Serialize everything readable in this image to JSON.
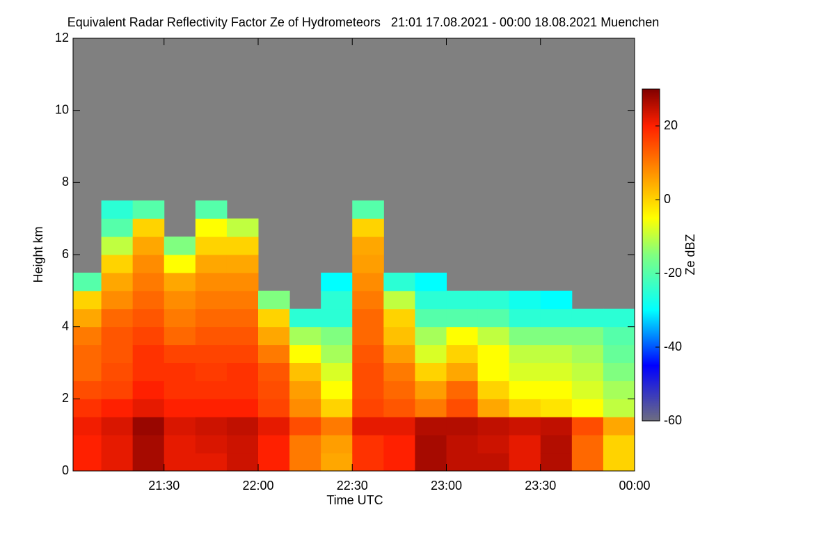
{
  "chart_data": {
    "type": "heatmap",
    "title": "Equivalent Radar Reflectivity Factor Ze of Hydrometeors   21:01 17.08.2021 - 00:00 18.08.2021 Muenchen",
    "x_label": "Time UTC",
    "y_label": "Height km",
    "colorbar_label": "Ze dBZ",
    "x": [
      "21:05",
      "21:15",
      "21:25",
      "21:35",
      "21:45",
      "21:55",
      "22:05",
      "22:15",
      "22:25",
      "22:35",
      "22:45",
      "22:55",
      "23:05",
      "23:15",
      "23:25",
      "23:35",
      "23:45",
      "23:55"
    ],
    "y": [
      0.25,
      0.75,
      1.25,
      1.75,
      2.25,
      2.75,
      3.25,
      3.75,
      4.25,
      4.75,
      5.25,
      5.75,
      6.25,
      6.75,
      7.25,
      7.75
    ],
    "z": [
      [
        20,
        20,
        21,
        18,
        15,
        12,
        12,
        10,
        5,
        0,
        -20,
        null,
        null,
        null,
        null,
        null
      ],
      [
        22,
        22,
        23,
        20,
        16,
        15,
        14,
        14,
        12,
        8,
        5,
        0,
        -10,
        -20,
        -25,
        null
      ],
      [
        27,
        27,
        28,
        22,
        20,
        18,
        18,
        16,
        14,
        12,
        10,
        8,
        5,
        0,
        -20,
        null
      ],
      [
        22,
        22,
        23,
        20,
        18,
        18,
        16,
        12,
        10,
        8,
        5,
        -5,
        -15,
        null,
        null,
        null
      ],
      [
        22,
        23,
        24,
        20,
        18,
        17,
        16,
        14,
        12,
        10,
        8,
        5,
        0,
        -5,
        -20,
        null
      ],
      [
        24,
        24,
        25,
        20,
        18,
        18,
        16,
        14,
        12,
        10,
        8,
        5,
        0,
        -10,
        null,
        null
      ],
      [
        20,
        20,
        22,
        16,
        15,
        14,
        10,
        5,
        0,
        -15,
        null,
        null,
        null,
        null,
        null,
        null
      ],
      [
        10,
        10,
        15,
        8,
        6,
        2,
        -5,
        -12,
        -25,
        null,
        null,
        null,
        null,
        null,
        null,
        null
      ],
      [
        5,
        6,
        10,
        0,
        -5,
        -8,
        -12,
        -15,
        -25,
        -25,
        -30,
        null,
        null,
        null,
        null,
        null
      ],
      [
        18,
        18,
        22,
        16,
        15,
        15,
        14,
        12,
        12,
        10,
        8,
        6,
        5,
        0,
        -20,
        null
      ],
      [
        20,
        20,
        22,
        14,
        12,
        10,
        6,
        2,
        0,
        -10,
        -25,
        null,
        null,
        null,
        null,
        null
      ],
      [
        27,
        27,
        26,
        10,
        6,
        0,
        -8,
        -12,
        -20,
        -25,
        -30,
        null,
        null,
        null,
        null,
        null
      ],
      [
        25,
        25,
        26,
        15,
        12,
        5,
        0,
        -5,
        -20,
        -25,
        null,
        null,
        null,
        null,
        null,
        null
      ],
      [
        25,
        24,
        25,
        5,
        0,
        -5,
        -5,
        -10,
        -20,
        -25,
        null,
        null,
        null,
        null,
        null,
        null
      ],
      [
        22,
        22,
        24,
        0,
        -5,
        -8,
        -10,
        -15,
        -25,
        -28,
        null,
        null,
        null,
        null,
        null,
        null
      ],
      [
        26,
        26,
        25,
        -2,
        -5,
        -8,
        -10,
        -15,
        -25,
        -30,
        null,
        null,
        null,
        null,
        null,
        null
      ],
      [
        12,
        12,
        15,
        -5,
        -8,
        -10,
        -12,
        -15,
        -25,
        null,
        null,
        null,
        null,
        null,
        null,
        null
      ],
      [
        0,
        0,
        5,
        -10,
        -12,
        -15,
        -18,
        -20,
        -25,
        null,
        null,
        null,
        null,
        null,
        null,
        null
      ]
    ],
    "xlim": [
      "21:01",
      "00:00"
    ],
    "xticks": [
      "21:30",
      "22:00",
      "22:30",
      "23:00",
      "23:30",
      "00:00"
    ],
    "ylim": [
      0,
      12
    ],
    "yticks": [
      0,
      2,
      4,
      6,
      8,
      10,
      12
    ],
    "zlim": [
      -60,
      30
    ],
    "zticks": [
      -60,
      -40,
      -20,
      0,
      20
    ],
    "background": "#808080",
    "colorscale": [
      [
        -60,
        "#6e6e80"
      ],
      [
        -45,
        "#0000ff"
      ],
      [
        -30,
        "#00ffff"
      ],
      [
        -15,
        "#80ff80"
      ],
      [
        -5,
        "#ffff00"
      ],
      [
        8,
        "#ff8c00"
      ],
      [
        20,
        "#ff2000"
      ],
      [
        30,
        "#800000"
      ]
    ]
  }
}
